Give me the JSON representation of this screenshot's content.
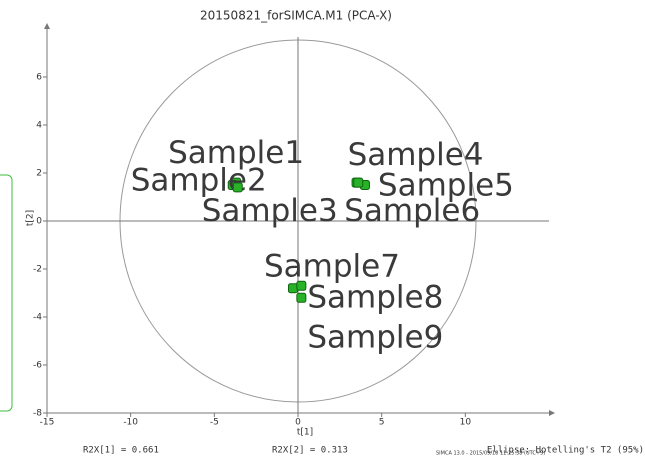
{
  "chart_data": {
    "type": "scatter",
    "title": "20150821_forSIMCA.M1 (PCA-X)",
    "xlabel": "t[1]",
    "ylabel": "t[2]",
    "x": [
      -3.7,
      -3.9,
      -3.6,
      3.5,
      4.0,
      3.6,
      -0.3,
      0.2,
      0.2
    ],
    "values": [
      1.6,
      1.5,
      1.4,
      1.6,
      1.5,
      1.6,
      -2.8,
      -2.7,
      -3.2
    ],
    "labels": [
      "Sample1",
      "Sample2",
      "Sample3",
      "Sample4",
      "Sample5",
      "Sample6",
      "Sample7",
      "Sample8",
      "Sample9"
    ],
    "color": "#27b227",
    "xlim": [
      -15,
      15
    ],
    "xticks": [
      -15,
      -10,
      -5,
      0,
      5,
      10
    ],
    "ylim": [
      -8,
      8
    ],
    "yticks": [
      -8,
      -6,
      -4,
      -2,
      0,
      2,
      4,
      6
    ],
    "annotations": [
      "R2X[1] = 0.661",
      "R2X[2] = 0.313",
      "Ellipse: Hotelling's T2 (95%)",
      "SIMCA 13.0 - 2015/09/18 11:25:38 (UTC+9)"
    ]
  }
}
